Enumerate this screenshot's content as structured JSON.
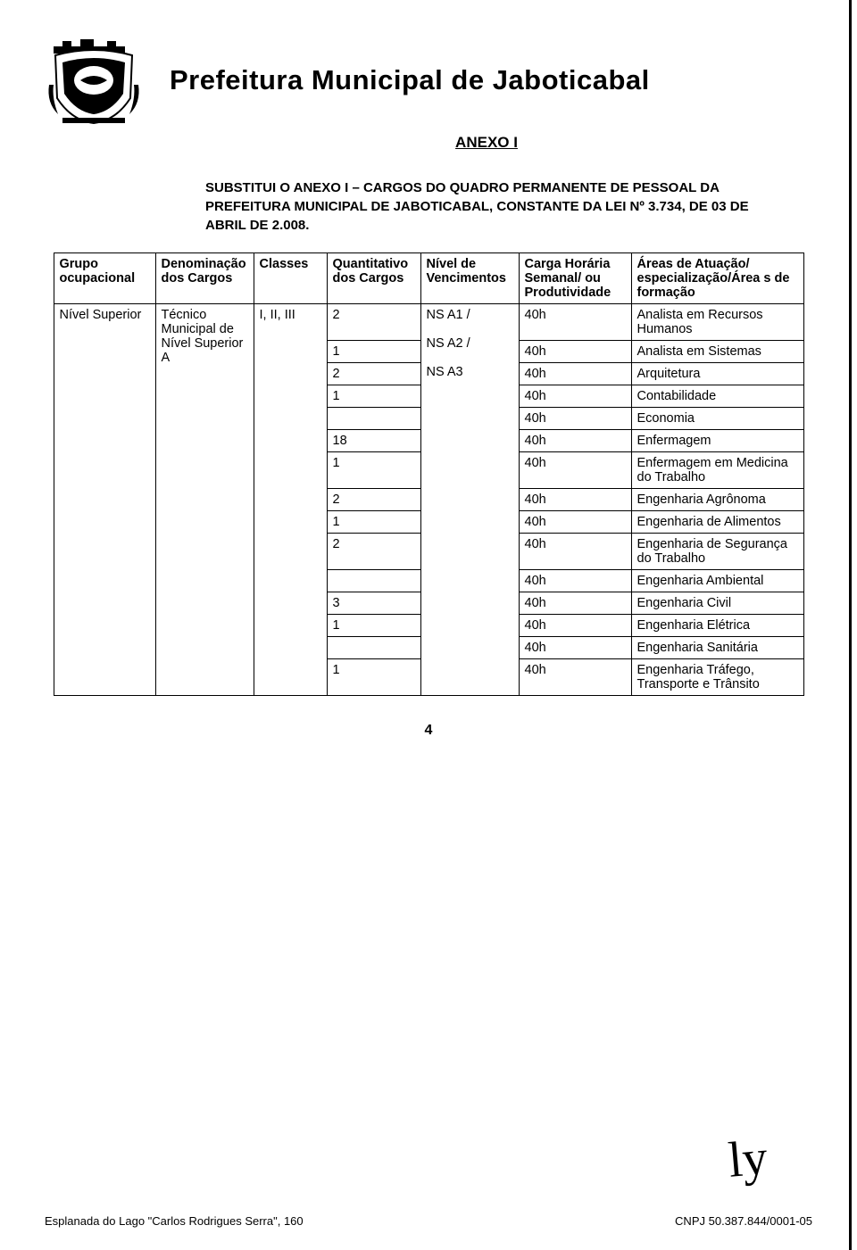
{
  "header": {
    "title": "Prefeitura Municipal de Jaboticabal",
    "subtitle": "ANEXO I"
  },
  "intro": "SUBSTITUI O ANEXO I – CARGOS DO QUADRO PERMANENTE DE PESSOAL DA PREFEITURA MUNICIPAL DE JABOTICABAL, CONSTANTE DA LEI Nº 3.734, DE 03 DE ABRIL DE 2.008.",
  "table": {
    "columns": [
      "Grupo ocupacional",
      "Denominação dos Cargos",
      "Classes",
      "Quantitativo dos Cargos",
      "Nível de Vencimentos",
      "Carga Horária Semanal/ ou Produtividade",
      "Áreas de Atuação/ especialização/Área s de formação"
    ],
    "group": "Nível Superior",
    "denom": "Técnico Municipal de Nível Superior A",
    "classes": "I, II, III",
    "nivel_venc": "NS A1 /\n\nNS A2 /\n\nNS A3",
    "rows": [
      {
        "qty": "2",
        "carga": "40h",
        "area": "Analista em Recursos Humanos"
      },
      {
        "qty": "1",
        "carga": "40h",
        "area": "Analista em Sistemas"
      },
      {
        "qty": "2",
        "carga": "40h",
        "area": "Arquitetura"
      },
      {
        "qty": "1",
        "carga": "40h",
        "area": "Contabilidade"
      },
      {
        "qty": "",
        "carga": "40h",
        "area": "Economia"
      },
      {
        "qty": "18",
        "carga": "40h",
        "area": "Enfermagem"
      },
      {
        "qty": "1",
        "carga": "40h",
        "area": "Enfermagem em Medicina do Trabalho"
      },
      {
        "qty": "2",
        "carga": "40h",
        "area": "Engenharia Agrônoma"
      },
      {
        "qty": "1",
        "carga": "40h",
        "area": "Engenharia de Alimentos"
      },
      {
        "qty": "2",
        "carga": "40h",
        "area": "Engenharia de Segurança do Trabalho"
      },
      {
        "qty": "",
        "carga": "40h",
        "area": "Engenharia Ambiental"
      },
      {
        "qty": "3",
        "carga": "40h",
        "area": "Engenharia Civil"
      },
      {
        "qty": "1",
        "carga": "40h",
        "area": "Engenharia Elétrica"
      },
      {
        "qty": "",
        "carga": "40h",
        "area": "Engenharia Sanitária"
      },
      {
        "qty": "1",
        "carga": "40h",
        "area": "Engenharia Tráfego, Transporte e Trânsito"
      }
    ]
  },
  "page_number": "4",
  "footer": {
    "left": "Esplanada do Lago \"Carlos Rodrigues Serra\", 160",
    "right": "CNPJ 50.387.844/0001-05"
  },
  "colors": {
    "text": "#000000",
    "background": "#ffffff",
    "border": "#000000"
  }
}
